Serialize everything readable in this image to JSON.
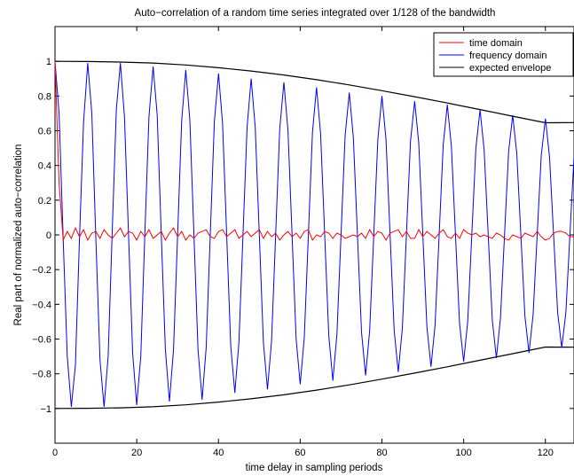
{
  "chart_data": {
    "type": "line",
    "title": "Auto−correlation of a random time series integrated over 1/128 of the bandwidth",
    "xlabel": "time delay in sampling periods",
    "ylabel": "Real part of normalized auto−correlation",
    "xlim": [
      0,
      127
    ],
    "ylim": [
      -1.2,
      1.2
    ],
    "xticks": [
      0,
      20,
      40,
      60,
      80,
      100,
      120
    ],
    "xtick_labels": [
      "0",
      "20",
      "40",
      "60",
      "80",
      "100",
      "120"
    ],
    "yticks": [
      -1,
      -0.8,
      -0.6,
      -0.4,
      -0.2,
      0,
      0.2,
      0.4,
      0.6,
      0.8,
      1
    ],
    "ytick_labels": [
      "−1",
      "−0.8",
      "−0.6",
      "−0.4",
      "−0.2",
      "0",
      "0.2",
      "0.4",
      "0.6",
      "0.8",
      "1"
    ],
    "grid": false,
    "legend_position": "top-right",
    "series": [
      {
        "name": "time domain",
        "color": "#ff0000",
        "x": [
          0,
          1,
          2,
          3,
          4,
          5,
          6,
          7,
          8,
          9,
          10,
          11,
          12,
          13,
          14,
          15,
          16,
          17,
          18,
          19,
          20,
          21,
          22,
          23,
          24,
          25,
          26,
          27,
          28,
          29,
          30,
          31,
          32,
          33,
          34,
          35,
          36,
          37,
          38,
          39,
          40,
          41,
          42,
          43,
          44,
          45,
          46,
          47,
          48,
          49,
          50,
          51,
          52,
          53,
          54,
          55,
          56,
          57,
          58,
          59,
          60,
          61,
          62,
          63,
          64,
          65,
          66,
          67,
          68,
          69,
          70,
          71,
          72,
          73,
          74,
          75,
          76,
          77,
          78,
          79,
          80,
          81,
          82,
          83,
          84,
          85,
          86,
          87,
          88,
          89,
          90,
          91,
          92,
          93,
          94,
          95,
          96,
          97,
          98,
          99,
          100,
          101,
          102,
          103,
          104,
          105,
          106,
          107,
          108,
          109,
          110,
          111,
          112,
          113,
          114,
          115,
          116,
          117,
          118,
          119,
          120,
          121,
          122,
          123,
          124,
          125,
          126,
          127
        ],
        "y": [
          1.0,
          0.3,
          -0.03,
          0.02,
          -0.02,
          0.04,
          -0.01,
          0.03,
          -0.03,
          0.01,
          0.02,
          -0.02,
          0.03,
          0.0,
          -0.02,
          0.01,
          0.04,
          -0.01,
          0.02,
          0.01,
          -0.03,
          0.02,
          -0.01,
          0.03,
          -0.02,
          0.0,
          0.02,
          -0.03,
          0.01,
          0.04,
          -0.01,
          0.02,
          -0.03,
          0.0,
          -0.02,
          0.01,
          0.02,
          0.03,
          -0.01,
          -0.02,
          0.02,
          0.03,
          -0.01,
          0.01,
          0.03,
          -0.02,
          0.0,
          0.02,
          -0.01,
          0.01,
          0.03,
          -0.02,
          0.02,
          -0.01,
          0.01,
          -0.03,
          0.0,
          0.02,
          -0.01,
          0.01,
          -0.02,
          0.02,
          0.03,
          -0.03,
          0.0,
          -0.01,
          0.02,
          0.01,
          -0.02,
          0.01,
          0.0,
          -0.02,
          -0.01,
          0.0,
          -0.01,
          0.01,
          -0.02,
          0.03,
          -0.01,
          0.02,
          0.01,
          -0.03,
          0.01,
          0.02,
          0.03,
          -0.01,
          0.02,
          -0.02,
          -0.02,
          0.03,
          -0.01,
          0.02,
          0.0,
          -0.02,
          0.01,
          0.03,
          -0.01,
          -0.02,
          0.01,
          -0.02,
          0.03,
          0.01,
          0.0,
          0.01,
          -0.01,
          0.0,
          -0.01,
          -0.02,
          0.01,
          0.0,
          -0.02,
          -0.03,
          0.0,
          -0.01,
          -0.02,
          0.01,
          0.0,
          -0.01,
          0.02,
          -0.01,
          -0.03,
          -0.02,
          0.01,
          0.02,
          0.02,
          0.01,
          -0.01,
          -0.01
        ]
      },
      {
        "name": "frequency domain",
        "color": "#0000ff",
        "x": [
          0,
          1,
          2,
          3,
          4,
          5,
          6,
          7,
          8,
          9,
          10,
          11,
          12,
          13,
          14,
          15,
          16,
          17,
          18,
          19,
          20,
          21,
          22,
          23,
          24,
          25,
          26,
          27,
          28,
          29,
          30,
          31,
          32,
          33,
          34,
          35,
          36,
          37,
          38,
          39,
          40,
          41,
          42,
          43,
          44,
          45,
          46,
          47,
          48,
          49,
          50,
          51,
          52,
          53,
          54,
          55,
          56,
          57,
          58,
          59,
          60,
          61,
          62,
          63,
          64,
          65,
          66,
          67,
          68,
          69,
          70,
          71,
          72,
          73,
          74,
          75,
          76,
          77,
          78,
          79,
          80,
          81,
          82,
          83,
          84,
          85,
          86,
          87,
          88,
          89,
          90,
          91,
          92,
          93,
          94,
          95,
          96,
          97,
          98,
          99,
          100,
          101,
          102,
          103,
          104,
          105,
          106,
          107,
          108,
          109,
          110,
          111,
          112,
          113,
          114,
          115,
          116,
          117,
          118,
          119,
          120,
          121,
          122,
          123,
          124,
          125,
          126,
          127
        ],
        "y": [
          1.0,
          0.7,
          -0.02,
          -0.7,
          -0.99,
          -0.75,
          -0.02,
          0.65,
          0.99,
          0.7,
          -0.03,
          -0.72,
          -0.99,
          -0.7,
          0.02,
          0.72,
          0.99,
          0.68,
          0.0,
          -0.68,
          -0.98,
          -0.7,
          0.01,
          0.68,
          0.97,
          0.69,
          0.0,
          -0.66,
          -0.96,
          -0.66,
          0.0,
          0.66,
          0.95,
          0.66,
          0.0,
          -0.66,
          -0.95,
          -0.65,
          0.0,
          0.65,
          0.93,
          0.64,
          0.0,
          -0.64,
          -0.91,
          -0.62,
          0.0,
          0.62,
          0.9,
          0.62,
          0.0,
          -0.62,
          -0.89,
          -0.61,
          0.0,
          0.61,
          0.88,
          0.6,
          0.0,
          -0.6,
          -0.86,
          -0.59,
          0.0,
          0.59,
          0.85,
          0.58,
          0.0,
          -0.58,
          -0.84,
          -0.57,
          0.0,
          0.57,
          0.82,
          0.56,
          0.0,
          -0.56,
          -0.81,
          -0.55,
          0.0,
          0.55,
          0.8,
          0.55,
          0.0,
          -0.55,
          -0.79,
          -0.54,
          0.0,
          0.54,
          0.77,
          0.53,
          0.0,
          -0.53,
          -0.76,
          -0.52,
          0.0,
          0.52,
          0.75,
          0.51,
          0.0,
          -0.51,
          -0.73,
          -0.5,
          0.0,
          0.5,
          0.72,
          0.49,
          0.0,
          -0.49,
          -0.71,
          -0.48,
          0.0,
          0.48,
          0.69,
          0.47,
          0.0,
          -0.47,
          -0.68,
          -0.46,
          0.0,
          0.46,
          0.67,
          0.45,
          0.0,
          -0.45,
          -0.65,
          -0.45,
          0.0,
          0.45
        ]
      },
      {
        "name": "expected envelope",
        "color": "#000000",
        "x": [
          0,
          8,
          16,
          24,
          32,
          40,
          48,
          56,
          64,
          72,
          80,
          88,
          96,
          104,
          112,
          120,
          127
        ],
        "y_upper": [
          1.0,
          0.999,
          0.996,
          0.99,
          0.979,
          0.963,
          0.944,
          0.921,
          0.894,
          0.864,
          0.831,
          0.796,
          0.76,
          0.722,
          0.684,
          0.646,
          0.647
        ],
        "y_lower": [
          -1.0,
          -0.999,
          -0.996,
          -0.99,
          -0.979,
          -0.963,
          -0.944,
          -0.921,
          -0.894,
          -0.864,
          -0.831,
          -0.796,
          -0.76,
          -0.722,
          -0.684,
          -0.646,
          -0.647
        ]
      }
    ]
  }
}
